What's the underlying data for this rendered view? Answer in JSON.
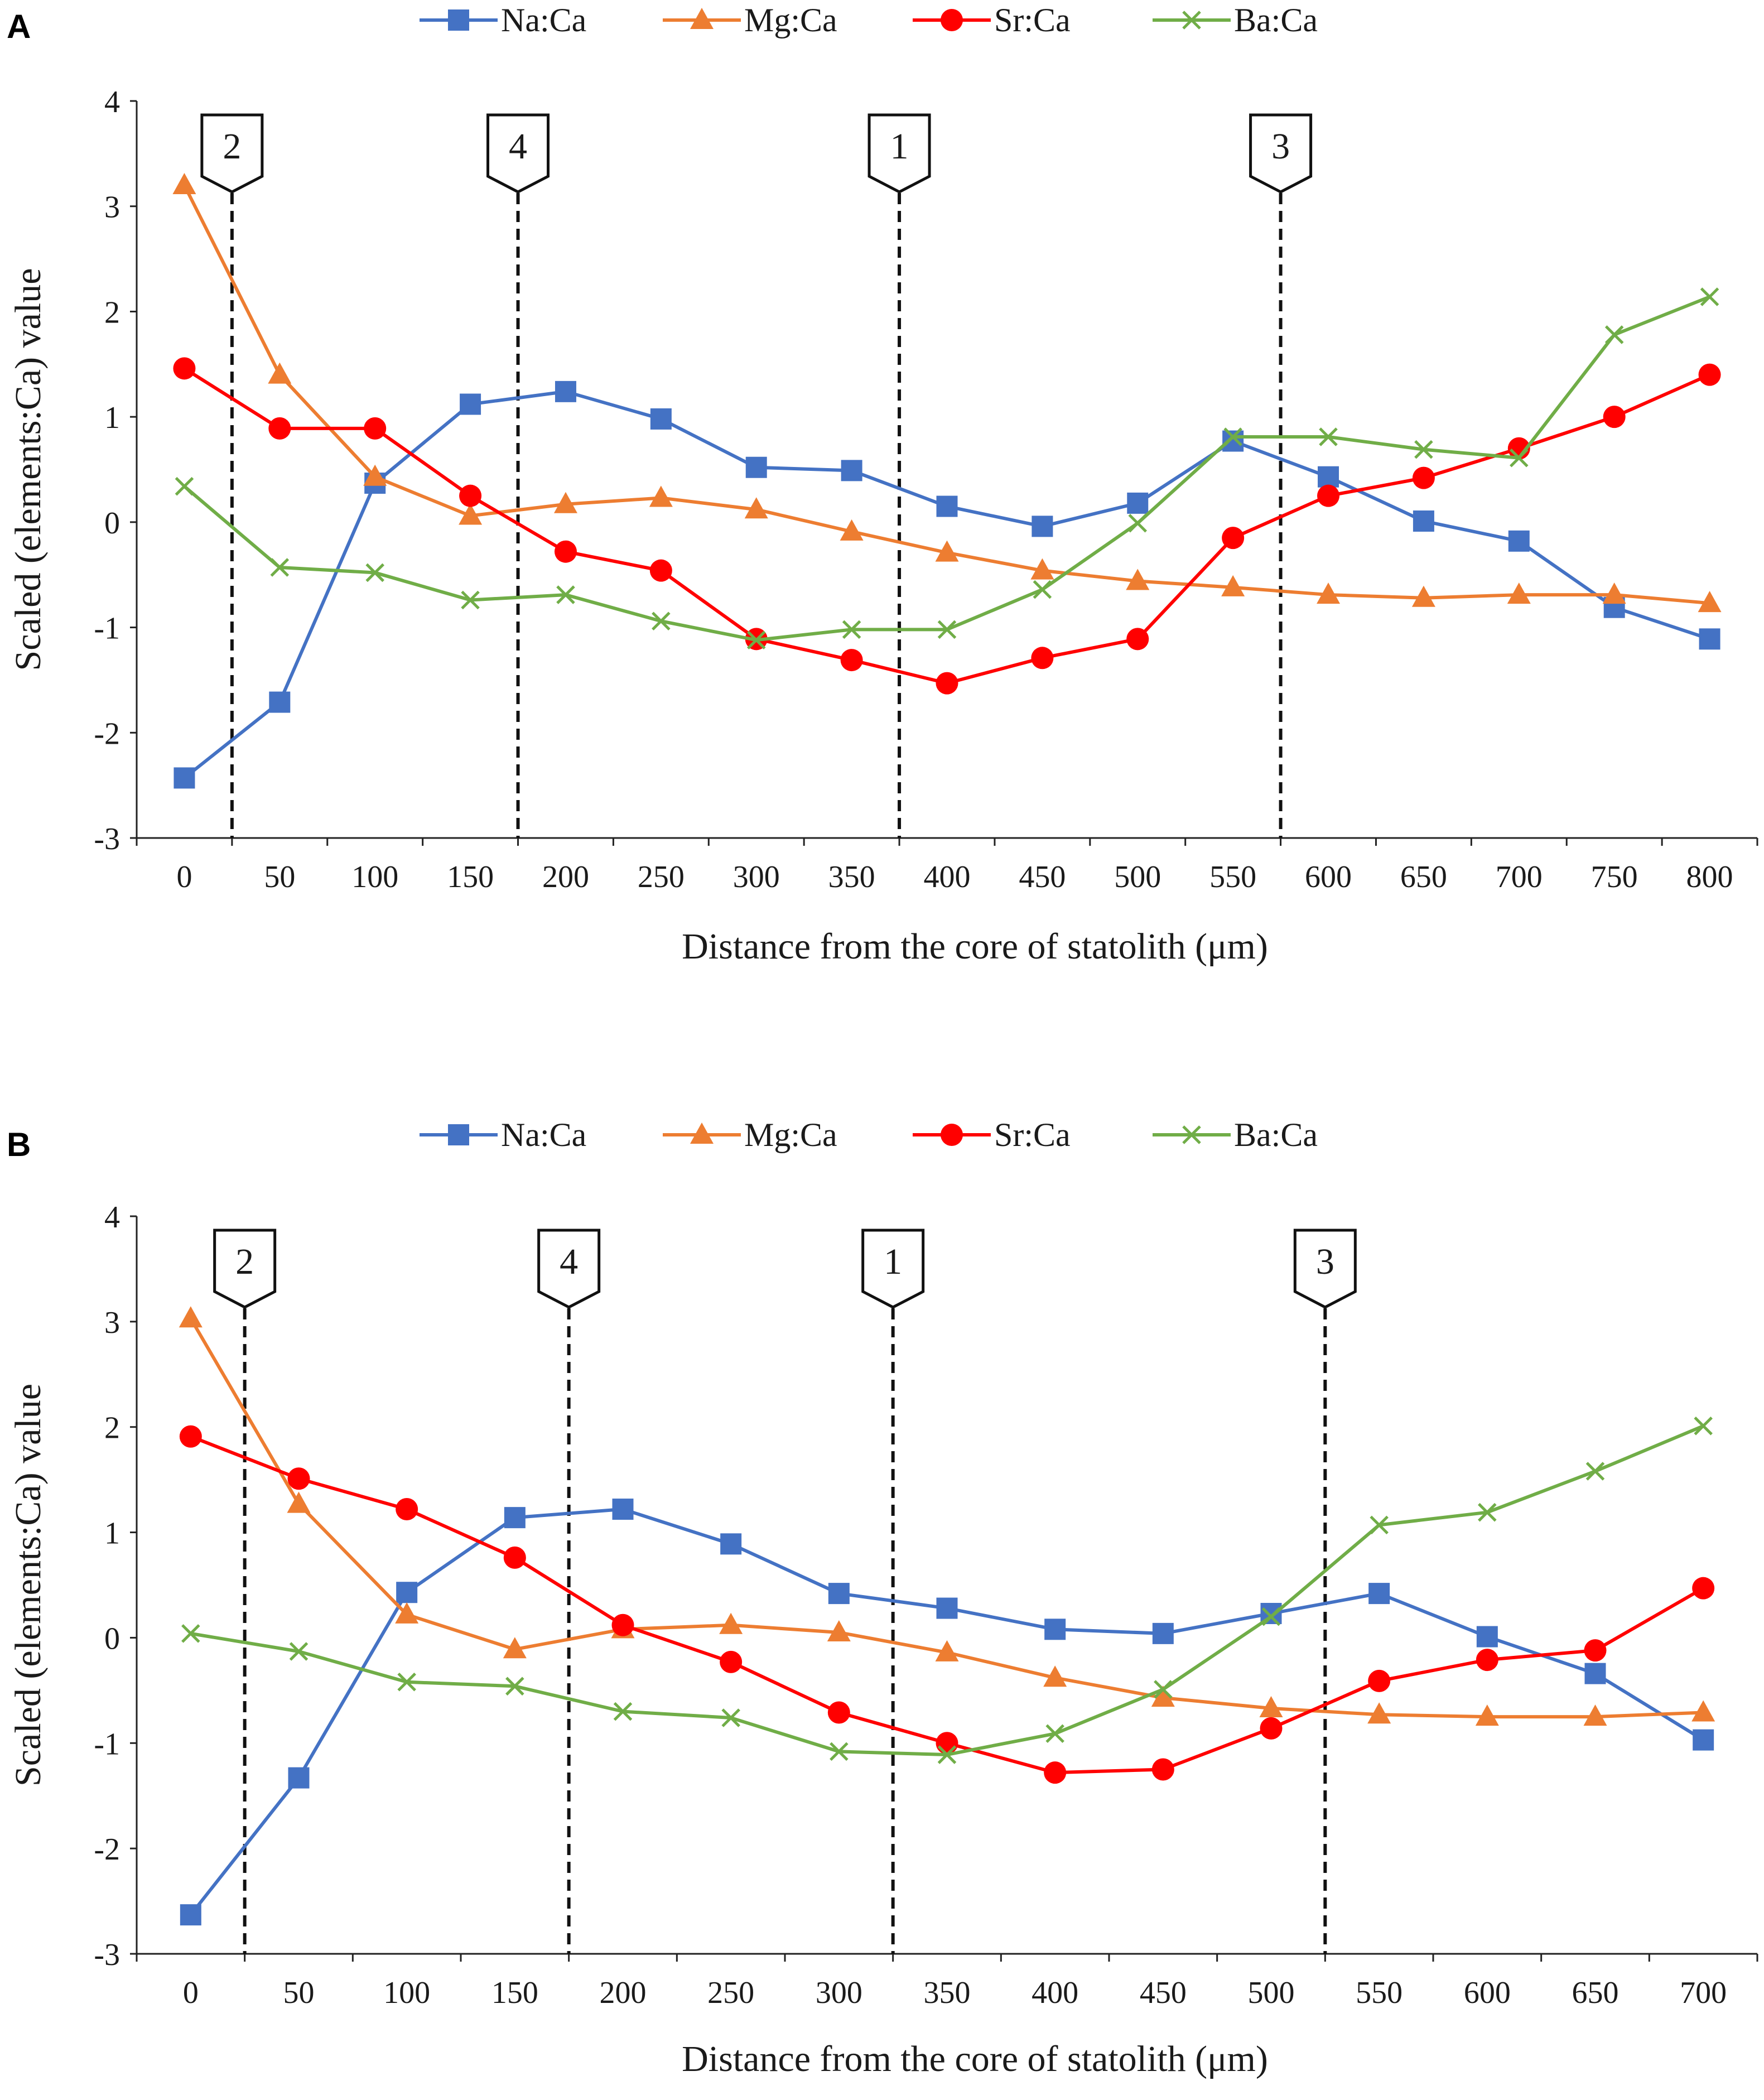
{
  "chart_data": [
    {
      "type": "line",
      "panel": "A",
      "title": "",
      "xlabel": "Distance from the core of statolith (μm)",
      "ylabel": "Scaled (elements:Ca) value",
      "ylim": [
        -3,
        4
      ],
      "yticks": [
        "-3",
        "-2",
        "-1",
        "0",
        "1",
        "2",
        "3",
        "4"
      ],
      "categories": [
        "0",
        "50",
        "100",
        "150",
        "200",
        "250",
        "300",
        "350",
        "400",
        "450",
        "500",
        "550",
        "600",
        "650",
        "700",
        "750",
        "800"
      ],
      "legend_position": "top",
      "series": [
        {
          "name": "Na:Ca",
          "color": "#4472C4",
          "marker": "square",
          "values": [
            -2.43,
            -1.71,
            0.37,
            1.12,
            1.24,
            0.98,
            0.52,
            0.49,
            0.15,
            -0.04,
            0.18,
            0.77,
            0.43,
            0.01,
            -0.18,
            -0.81,
            -1.11
          ]
        },
        {
          "name": "Mg:Ca",
          "color": "#ED7D31",
          "marker": "triangle",
          "values": [
            3.2,
            1.4,
            0.43,
            0.06,
            0.17,
            0.23,
            0.12,
            -0.09,
            -0.29,
            -0.46,
            -0.56,
            -0.62,
            -0.69,
            -0.72,
            -0.69,
            -0.69,
            -0.77
          ]
        },
        {
          "name": "Sr:Ca",
          "color": "#FF0000",
          "marker": "circle",
          "values": [
            1.46,
            0.89,
            0.89,
            0.25,
            -0.28,
            -0.46,
            -1.11,
            -1.31,
            -1.53,
            -1.29,
            -1.11,
            -0.15,
            0.25,
            0.42,
            0.7,
            1.0,
            1.4
          ]
        },
        {
          "name": "Ba:Ca",
          "color": "#70AD47",
          "marker": "x",
          "values": [
            0.34,
            -0.43,
            -0.48,
            -0.74,
            -0.69,
            -0.94,
            -1.12,
            -1.02,
            -1.02,
            -0.64,
            -0.01,
            0.81,
            0.81,
            0.69,
            0.61,
            1.78,
            2.14
          ]
        }
      ],
      "markers": [
        {
          "label": "2",
          "at": 25
        },
        {
          "label": "4",
          "at": 175
        },
        {
          "label": "1",
          "at": 375
        },
        {
          "label": "3",
          "at": 575
        }
      ]
    },
    {
      "type": "line",
      "panel": "B",
      "title": "",
      "xlabel": "Distance from the core of statolith (μm)",
      "ylabel": "Scaled (elements:Ca) value",
      "ylim": [
        -3,
        4
      ],
      "yticks": [
        "-3",
        "-2",
        "-1",
        "0",
        "1",
        "2",
        "3",
        "4"
      ],
      "categories": [
        "0",
        "50",
        "100",
        "150",
        "200",
        "250",
        "300",
        "350",
        "400",
        "450",
        "500",
        "550",
        "600",
        "650",
        "700"
      ],
      "legend_position": "top",
      "series": [
        {
          "name": "Na:Ca",
          "color": "#4472C4",
          "marker": "square",
          "values": [
            -2.63,
            -1.33,
            0.43,
            1.14,
            1.22,
            0.89,
            0.42,
            0.28,
            0.08,
            0.04,
            0.23,
            0.42,
            0.01,
            -0.34,
            -0.97
          ]
        },
        {
          "name": "Mg:Ca",
          "color": "#ED7D31",
          "marker": "triangle",
          "values": [
            3.03,
            1.27,
            0.22,
            -0.11,
            0.08,
            0.12,
            0.05,
            -0.14,
            -0.38,
            -0.57,
            -0.67,
            -0.73,
            -0.75,
            -0.75,
            -0.71
          ]
        },
        {
          "name": "Sr:Ca",
          "color": "#FF0000",
          "marker": "circle",
          "values": [
            1.91,
            1.51,
            1.22,
            0.76,
            0.12,
            -0.23,
            -0.71,
            -1.0,
            -1.28,
            -1.25,
            -0.86,
            -0.41,
            -0.21,
            -0.12,
            0.47
          ]
        },
        {
          "name": "Ba:Ca",
          "color": "#70AD47",
          "marker": "x",
          "values": [
            0.04,
            -0.13,
            -0.42,
            -0.46,
            -0.7,
            -0.76,
            -1.08,
            -1.11,
            -0.91,
            -0.49,
            0.2,
            1.07,
            1.19,
            1.58,
            2.01
          ]
        }
      ],
      "markers": [
        {
          "label": "2",
          "at": 25
        },
        {
          "label": "4",
          "at": 175
        },
        {
          "label": "1",
          "at": 325
        },
        {
          "label": "3",
          "at": 525
        }
      ]
    }
  ]
}
